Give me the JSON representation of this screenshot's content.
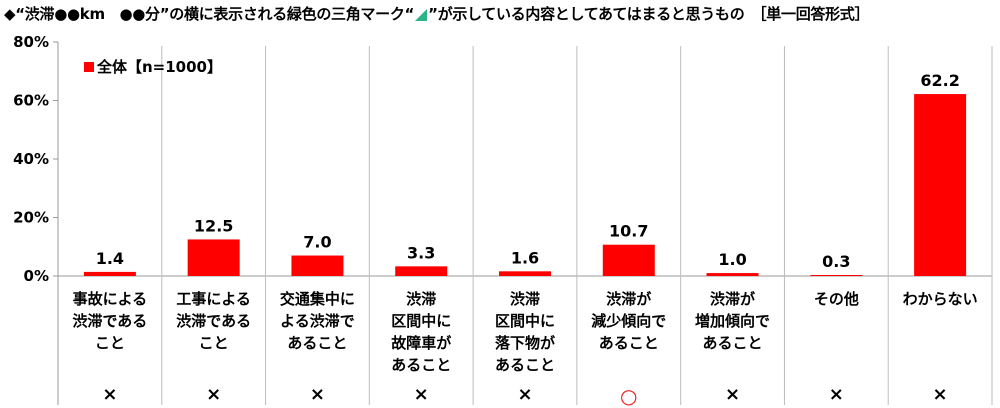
{
  "title": {
    "before": "◆“渋滞●●km　●●分”の横に表示される緑色の三角マーク“",
    "after": "”が示している内容としてあてはまると思うもの　［単一回答形式］"
  },
  "colors": {
    "bar": "#ff0000",
    "marker_triangle": "#2bb38a",
    "circle": "#e41e20"
  },
  "legend": {
    "label": "全体【n=1000】"
  },
  "chart_data": {
    "type": "bar",
    "categories": [
      "事故による\n渋滞である\nこと",
      "工事による\n渋滞である\nこと",
      "交通集中に\nよる渋滞で\nあること",
      "渋滞\n区間中に\n故障車が\nあること",
      "渋滞\n区間中に\n落下物が\nあること",
      "渋滞が\n減少傾向で\nあること",
      "渋滞が\n増加傾向で\nあること",
      "その他",
      "わからない"
    ],
    "series": [
      {
        "name": "全体【n=1000】",
        "values": [
          1.4,
          12.5,
          7.0,
          3.3,
          1.6,
          10.7,
          1.0,
          0.3,
          62.2
        ]
      }
    ],
    "value_labels": [
      "1.4",
      "12.5",
      "7.0",
      "3.3",
      "1.6",
      "10.7",
      "1.0",
      "0.3",
      "62.2"
    ],
    "ylim": [
      0,
      80
    ],
    "yticks": [
      "0%",
      "20%",
      "40%",
      "60%",
      "80%"
    ],
    "grid": false,
    "legend_position": "top-left",
    "answer_marks": [
      "×",
      "×",
      "×",
      "×",
      "×",
      "○",
      "×",
      "×",
      "×"
    ]
  }
}
